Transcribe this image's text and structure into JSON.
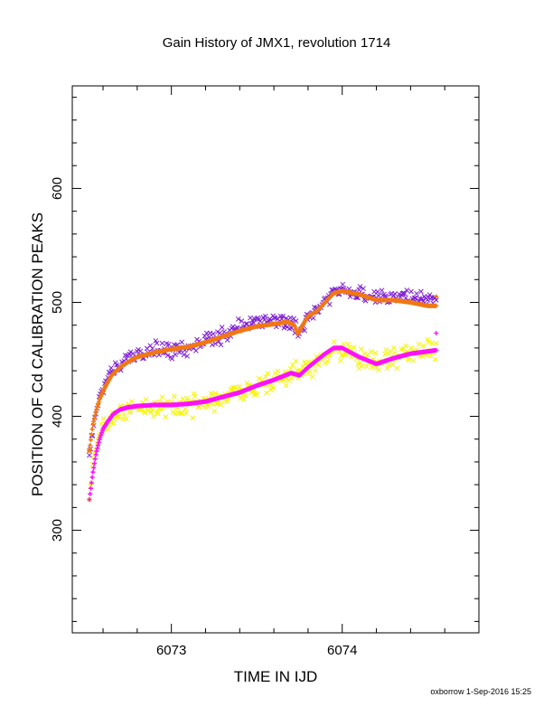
{
  "chart_data": {
    "type": "scatter",
    "title": "Gain History of JMX1, revolution 1714",
    "xlabel": "TIME IN IJD",
    "ylabel": "POSITION OF Cd CALIBRATION PEAKS",
    "xlim": [
      6072.42,
      6074.8
    ],
    "ylim": [
      210,
      690
    ],
    "x_tick_labels": [
      6073,
      6074
    ],
    "y_tick_labels": [
      300,
      400,
      500,
      600
    ],
    "x_minor_ticks": [
      6072.6,
      6072.8,
      6073.2,
      6073.4,
      6073.6,
      6073.8,
      6074.2,
      6074.4,
      6074.6
    ],
    "y_minor_ticks": [
      220,
      240,
      260,
      280,
      320,
      340,
      360,
      380,
      420,
      440,
      460,
      480,
      520,
      540,
      560,
      580,
      620,
      640,
      660,
      680
    ],
    "grid": false,
    "series": [
      {
        "color": "#7f1ed6",
        "marker": "x",
        "x": [
          6072.52,
          6072.55,
          6072.58,
          6072.62,
          6072.67,
          6072.72,
          6072.8,
          6072.88,
          6072.95,
          6073.02,
          6073.1,
          6073.2,
          6073.3,
          6073.4,
          6073.5,
          6073.6,
          6073.7,
          6073.75,
          6073.8,
          6073.85,
          6073.9,
          6073.95,
          6074.0,
          6074.1,
          6074.2,
          6074.3,
          6074.4,
          6074.5,
          6074.55
        ],
        "y": [
          372,
          398,
          418,
          432,
          442,
          450,
          455,
          458,
          458,
          459,
          461,
          466,
          471,
          478,
          483,
          484,
          481,
          476,
          484,
          490,
          502,
          510,
          511,
          508,
          504,
          503,
          505,
          503,
          504
        ],
        "spread": 10
      },
      {
        "color": "#f5f500",
        "marker": "x",
        "x": [
          6072.52,
          6072.55,
          6072.58,
          6072.62,
          6072.67,
          6072.72,
          6072.8,
          6072.88,
          6072.95,
          6073.02,
          6073.1,
          6073.2,
          6073.3,
          6073.4,
          6073.5,
          6073.6,
          6073.7,
          6073.8,
          6073.85,
          6073.9,
          6073.95,
          6074.0,
          6074.1,
          6074.2,
          6074.3,
          6074.4,
          6074.5,
          6074.55
        ],
        "y": [
          330,
          368,
          385,
          395,
          402,
          404,
          406,
          408,
          409,
          410,
          411,
          413,
          416,
          421,
          425,
          430,
          437,
          440,
          447,
          453,
          458,
          460,
          452,
          447,
          452,
          456,
          458,
          460
        ],
        "spread": 14
      },
      {
        "color": "#f07814",
        "marker": "+",
        "x": [
          6072.52,
          6072.54,
          6072.56,
          6072.58,
          6072.6,
          6072.62,
          6072.65,
          6072.7,
          6072.75,
          6072.8,
          6072.9,
          6073.0,
          6073.1,
          6073.2,
          6073.3,
          6073.4,
          6073.5,
          6073.6,
          6073.68,
          6073.72,
          6073.74,
          6073.76,
          6073.8,
          6073.85,
          6073.9,
          6073.95,
          6074.0,
          6074.1,
          6074.2,
          6074.3,
          6074.4,
          6074.5,
          6074.55
        ],
        "y": [
          370,
          392,
          405,
          415,
          422,
          428,
          436,
          443,
          448,
          452,
          456,
          459,
          461,
          465,
          470,
          475,
          479,
          481,
          483,
          480,
          472,
          478,
          488,
          492,
          500,
          508,
          510,
          507,
          502,
          502,
          500,
          497,
          497
        ],
        "spread": 0
      },
      {
        "color": "#ff10ff",
        "marker": "+",
        "x": [
          6072.52,
          6072.54,
          6072.56,
          6072.58,
          6072.6,
          6072.63,
          6072.66,
          6072.7,
          6072.75,
          6072.8,
          6072.9,
          6073.0,
          6073.1,
          6073.2,
          6073.3,
          6073.4,
          6073.5,
          6073.6,
          6073.7,
          6073.75,
          6073.8,
          6073.85,
          6073.9,
          6073.95,
          6074.0,
          6074.1,
          6074.2,
          6074.3,
          6074.4,
          6074.5,
          6074.55
        ],
        "y": [
          327,
          350,
          368,
          380,
          389,
          396,
          402,
          406,
          408,
          409,
          410,
          410,
          411,
          413,
          417,
          421,
          427,
          432,
          438,
          436,
          443,
          449,
          455,
          460,
          460,
          452,
          446,
          451,
          455,
          457,
          458
        ],
        "spread": 0
      }
    ],
    "end_markers": [
      {
        "color": "#f07814",
        "marker": "+",
        "x": 6074.55,
        "y": 505
      },
      {
        "color": "#ff10ff",
        "marker": "+",
        "x": 6074.55,
        "y": 473
      },
      {
        "color": "#f07814",
        "marker": "x",
        "x": 6072.52,
        "y": 370
      }
    ]
  },
  "footer": {
    "credit": "oxborrow  1-Sep-2016 15:25"
  }
}
